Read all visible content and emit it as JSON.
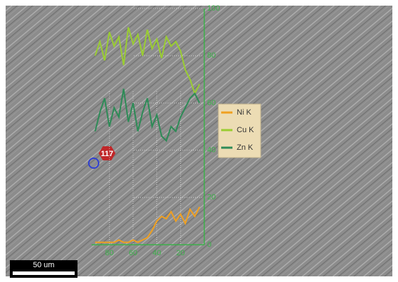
{
  "chart_data": {
    "type": "line",
    "x": [
      92,
      88,
      84,
      80,
      76,
      72,
      68,
      64,
      60,
      56,
      52,
      48,
      44,
      40,
      36,
      32,
      28,
      24,
      20,
      16,
      12,
      8,
      4
    ],
    "series": [
      {
        "name": "Ni K",
        "color": "#f0a020",
        "values": [
          1,
          1,
          1,
          1,
          1,
          2,
          1,
          1,
          2,
          1,
          2,
          3,
          6,
          10,
          12,
          11,
          14,
          10,
          13,
          9,
          15,
          12,
          16
        ]
      },
      {
        "name": "Cu K",
        "color": "#9acd32",
        "values": [
          80,
          86,
          78,
          90,
          84,
          88,
          76,
          92,
          85,
          89,
          80,
          91,
          83,
          87,
          79,
          88,
          84,
          86,
          82,
          74,
          70,
          64,
          68
        ]
      },
      {
        "name": "Zn K",
        "color": "#2e8b57",
        "values": [
          48,
          56,
          62,
          50,
          58,
          54,
          66,
          52,
          60,
          48,
          56,
          62,
          50,
          55,
          46,
          44,
          50,
          48,
          54,
          58,
          62,
          64,
          60
        ]
      }
    ],
    "xlim": [
      95,
      0
    ],
    "xticks": [
      80,
      60,
      40,
      20
    ],
    "ylim": [
      0,
      100
    ],
    "yticks": [
      0,
      20,
      40,
      60,
      80,
      100
    ],
    "grid": true,
    "annotations": [
      "117"
    ],
    "scale_bar": "50 um"
  }
}
